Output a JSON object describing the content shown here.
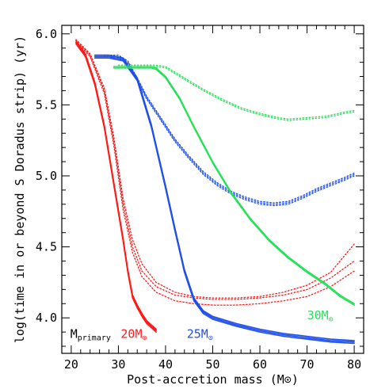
{
  "chart_data": {
    "type": "line",
    "xlabel": "Post-accretion mass (M⊙)",
    "ylabel": "log(time in or beyond S Doradus strip) (yr)",
    "xlim": [
      18,
      82
    ],
    "ylim": [
      3.75,
      6.06
    ],
    "x_ticks": [
      20,
      30,
      40,
      50,
      60,
      70,
      80
    ],
    "y_ticks": [
      4.0,
      4.5,
      5.0,
      5.5,
      6.0
    ],
    "y_tick_labels": [
      "4.0",
      "4.5",
      "5.0",
      "5.5",
      "6.0"
    ],
    "grid": false,
    "colors": {
      "red": "#ff1a1a",
      "blue": "#1f4fe8",
      "green": "#28e05a"
    },
    "annotations": {
      "primary_label": "M",
      "primary_subscript": "primary",
      "label_20": "20M",
      "label_25": "25M",
      "label_30": "30M",
      "sun_symbol": "⊙"
    },
    "series": [
      {
        "color": "red",
        "style": "solid",
        "x": [
          21,
          23,
          25,
          27,
          29,
          31,
          32,
          33,
          34,
          35,
          36,
          37,
          38
        ],
        "y": [
          5.94,
          5.85,
          5.65,
          5.35,
          4.95,
          4.55,
          4.33,
          4.15,
          4.08,
          4.02,
          3.97,
          3.94,
          3.91
        ]
      },
      {
        "color": "red",
        "style": "solid",
        "x": [
          21,
          23,
          25,
          27,
          29,
          31,
          32,
          33,
          34,
          35,
          36,
          37,
          38
        ],
        "y": [
          5.93,
          5.84,
          5.64,
          5.34,
          4.94,
          4.54,
          4.32,
          4.14,
          4.07,
          4.01,
          3.96,
          3.93,
          3.9
        ]
      },
      {
        "color": "red",
        "style": "solid",
        "x": [
          21,
          23,
          25,
          27,
          29,
          31,
          32,
          33,
          34,
          35,
          36,
          37,
          38
        ],
        "y": [
          5.95,
          5.86,
          5.66,
          5.36,
          4.96,
          4.56,
          4.34,
          4.16,
          4.09,
          4.03,
          3.98,
          3.95,
          3.92
        ]
      },
      {
        "color": "red",
        "style": "dotted",
        "x": [
          21,
          24,
          27,
          29,
          31,
          33,
          35,
          38,
          42,
          46,
          50,
          55,
          60,
          65,
          70,
          75,
          80
        ],
        "y": [
          5.96,
          5.85,
          5.6,
          5.25,
          4.8,
          4.5,
          4.33,
          4.22,
          4.16,
          4.14,
          4.13,
          4.13,
          4.14,
          4.16,
          4.2,
          4.28,
          4.4
        ]
      },
      {
        "color": "red",
        "style": "dotted",
        "x": [
          21,
          24,
          27,
          29,
          31,
          33,
          35,
          38,
          42,
          46,
          50,
          55,
          60,
          65,
          70,
          75,
          80
        ],
        "y": [
          5.96,
          5.86,
          5.62,
          5.28,
          4.84,
          4.55,
          4.38,
          4.25,
          4.18,
          4.15,
          4.14,
          4.14,
          4.15,
          4.18,
          4.23,
          4.32,
          4.52
        ]
      },
      {
        "color": "red",
        "style": "dotted",
        "x": [
          21,
          24,
          27,
          29,
          31,
          33,
          35,
          38,
          42,
          46,
          50,
          55,
          60,
          65,
          70,
          75,
          80
        ],
        "y": [
          5.95,
          5.84,
          5.58,
          5.22,
          4.76,
          4.46,
          4.29,
          4.18,
          4.12,
          4.1,
          4.09,
          4.09,
          4.1,
          4.12,
          4.15,
          4.22,
          4.33
        ]
      },
      {
        "color": "blue",
        "style": "solid",
        "x": [
          25,
          28,
          31,
          34,
          37,
          40,
          42,
          44,
          46,
          48,
          50,
          55,
          60,
          65,
          70,
          75,
          80
        ],
        "y": [
          5.84,
          5.84,
          5.82,
          5.68,
          5.35,
          4.92,
          4.62,
          4.33,
          4.13,
          4.04,
          4.0,
          3.95,
          3.91,
          3.88,
          3.86,
          3.84,
          3.83
        ]
      },
      {
        "color": "blue",
        "style": "solid",
        "x": [
          25,
          28,
          31,
          34,
          37,
          40,
          42,
          44,
          46,
          48,
          50,
          55,
          60,
          65,
          70,
          75,
          80
        ],
        "y": [
          5.83,
          5.83,
          5.81,
          5.67,
          5.34,
          4.91,
          4.61,
          4.32,
          4.12,
          4.03,
          3.99,
          3.94,
          3.9,
          3.87,
          3.85,
          3.83,
          3.82
        ]
      },
      {
        "color": "blue",
        "style": "solid",
        "x": [
          25,
          28,
          31,
          34,
          37,
          40,
          42,
          44,
          46,
          48,
          50,
          55,
          60,
          65,
          70,
          75,
          80
        ],
        "y": [
          5.85,
          5.85,
          5.83,
          5.69,
          5.36,
          4.93,
          4.63,
          4.34,
          4.14,
          4.05,
          4.01,
          3.96,
          3.92,
          3.89,
          3.87,
          3.85,
          3.84
        ]
      },
      {
        "color": "blue",
        "style": "dotted",
        "x": [
          27,
          30,
          32,
          34,
          36,
          38,
          40,
          42,
          45,
          48,
          51,
          54,
          57,
          60,
          63,
          66,
          69,
          72,
          75,
          78,
          80
        ],
        "y": [
          5.84,
          5.84,
          5.8,
          5.68,
          5.55,
          5.45,
          5.35,
          5.25,
          5.13,
          5.02,
          4.94,
          4.88,
          4.84,
          4.81,
          4.8,
          4.81,
          4.85,
          4.9,
          4.94,
          4.98,
          5.01
        ]
      },
      {
        "color": "blue",
        "style": "dotted",
        "x": [
          27,
          30,
          32,
          34,
          36,
          38,
          40,
          42,
          45,
          48,
          51,
          54,
          57,
          60,
          63,
          66,
          69,
          72,
          75,
          78,
          80
        ],
        "y": [
          5.85,
          5.85,
          5.81,
          5.69,
          5.56,
          5.46,
          5.36,
          5.26,
          5.14,
          5.03,
          4.95,
          4.89,
          4.85,
          4.82,
          4.81,
          4.82,
          4.86,
          4.91,
          4.95,
          4.99,
          5.02
        ]
      },
      {
        "color": "blue",
        "style": "dotted",
        "x": [
          27,
          30,
          32,
          34,
          36,
          38,
          40,
          42,
          45,
          48,
          51,
          54,
          57,
          60,
          63,
          66,
          69,
          72,
          75,
          78,
          80
        ],
        "y": [
          5.83,
          5.83,
          5.79,
          5.67,
          5.54,
          5.44,
          5.34,
          5.24,
          5.12,
          5.01,
          4.93,
          4.87,
          4.83,
          4.8,
          4.79,
          4.8,
          4.84,
          4.89,
          4.93,
          4.97,
          5.0
        ]
      },
      {
        "color": "green",
        "style": "solid",
        "x": [
          29,
          32,
          35,
          37,
          38,
          40,
          43,
          46,
          50,
          54,
          58,
          62,
          66,
          70,
          74,
          77,
          80
        ],
        "y": [
          5.77,
          5.77,
          5.77,
          5.77,
          5.76,
          5.7,
          5.55,
          5.35,
          5.1,
          4.88,
          4.7,
          4.55,
          4.43,
          4.33,
          4.24,
          4.16,
          4.1
        ]
      },
      {
        "color": "green",
        "style": "solid",
        "x": [
          29,
          32,
          35,
          37,
          38,
          40,
          43,
          46,
          50,
          54,
          58,
          62,
          66,
          70,
          74,
          77,
          80
        ],
        "y": [
          5.76,
          5.76,
          5.76,
          5.76,
          5.75,
          5.69,
          5.54,
          5.34,
          5.09,
          4.87,
          4.69,
          4.54,
          4.42,
          4.32,
          4.23,
          4.15,
          4.09
        ]
      },
      {
        "color": "green",
        "style": "dotted",
        "x": [
          30,
          35,
          38,
          40,
          42,
          45,
          48,
          52,
          56,
          60,
          64,
          66,
          70,
          74,
          78,
          80
        ],
        "y": [
          5.77,
          5.77,
          5.77,
          5.76,
          5.72,
          5.66,
          5.6,
          5.53,
          5.47,
          5.43,
          5.4,
          5.39,
          5.4,
          5.41,
          5.44,
          5.45
        ]
      },
      {
        "color": "green",
        "style": "dotted",
        "x": [
          30,
          35,
          38,
          40,
          42,
          45,
          48,
          52,
          56,
          60,
          64,
          66,
          70,
          74,
          78,
          80
        ],
        "y": [
          5.78,
          5.78,
          5.78,
          5.77,
          5.73,
          5.67,
          5.61,
          5.54,
          5.48,
          5.44,
          5.41,
          5.4,
          5.41,
          5.42,
          5.45,
          5.46
        ]
      }
    ]
  }
}
